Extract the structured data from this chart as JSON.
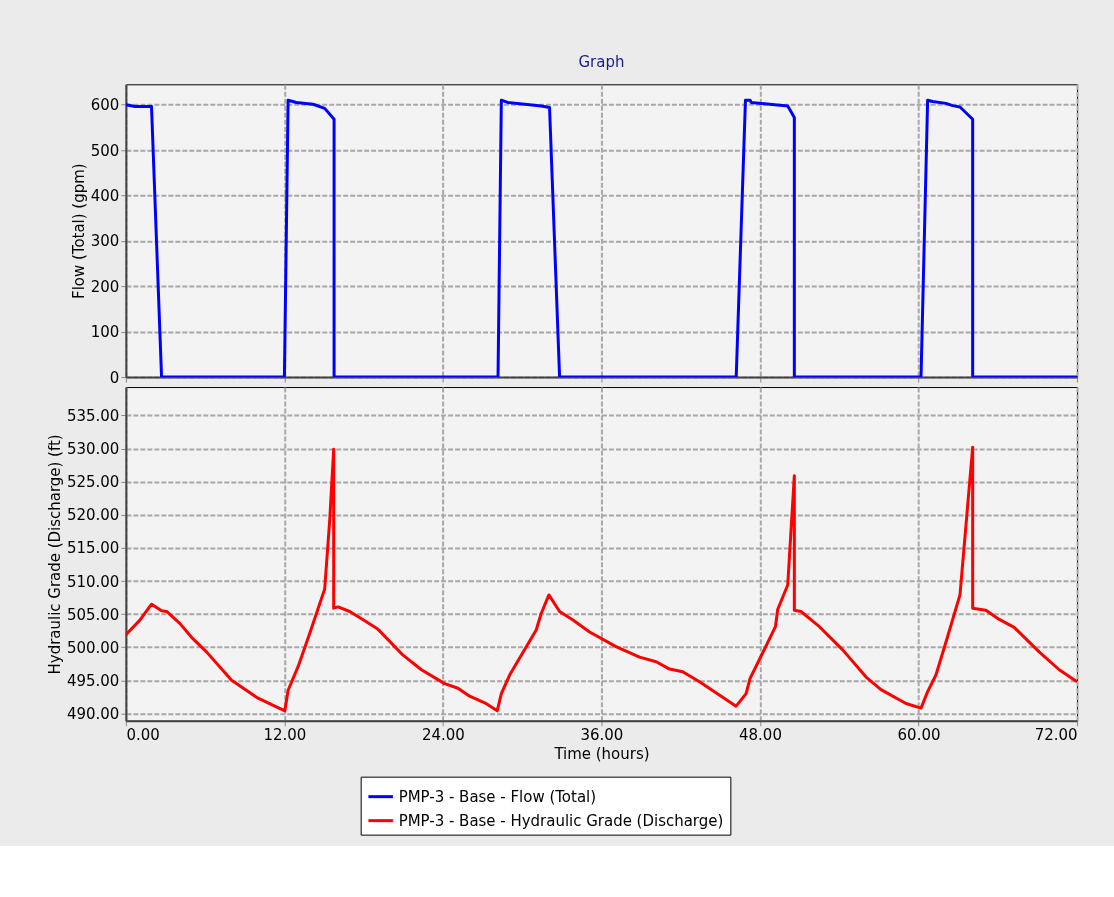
{
  "chart_data": [
    {
      "type": "line",
      "title": "Graph",
      "ylabel": "Flow (Total) (gpm)",
      "xlim": [
        0,
        72
      ],
      "xticks": [
        0,
        12,
        24,
        36,
        48,
        60,
        72
      ],
      "ylim": [
        0,
        645
      ],
      "yticks": [
        0,
        100,
        200,
        300,
        400,
        500,
        600
      ],
      "grid": true,
      "tick_labels": "y",
      "legend": "bottom",
      "line_style": "solid",
      "marker": "none",
      "series": [
        {
          "name": "PMP-3 - Base - Flow (Total)",
          "color": "#0000ff",
          "x": [
            0,
            0.7,
            1.94,
            2.7,
            12.0,
            12.28,
            12.9,
            14.17,
            15.05,
            15.76,
            15.76,
            28.17,
            28.42,
            28.9,
            31.45,
            32.07,
            32.83,
            46.2,
            46.9,
            47.25,
            47.33,
            50.1,
            50.6,
            50.6,
            60.19,
            60.69,
            61.07,
            62.08,
            62.58,
            63.14,
            64.1,
            64.1,
            72
          ],
          "values": [
            600,
            596,
            596,
            0,
            0,
            610,
            605,
            601,
            592,
            568,
            0,
            0,
            610,
            605,
            597,
            594,
            0,
            0,
            610,
            610,
            605,
            597,
            572,
            0,
            0,
            610,
            607,
            603,
            598,
            595,
            568,
            0,
            0
          ]
        }
      ]
    },
    {
      "type": "line",
      "xlabel": "Time (hours)",
      "ylabel": "Hydraulic Grade (Discharge) (ft)",
      "xlim": [
        0,
        72
      ],
      "xticks": [
        {
          "value": 0,
          "label": "0.00"
        },
        {
          "value": 12,
          "label": "12.00"
        },
        {
          "value": 24,
          "label": "24.00"
        },
        {
          "value": 36,
          "label": "36.00"
        },
        {
          "value": 48,
          "label": "48.00"
        },
        {
          "value": 60,
          "label": "60.00"
        },
        {
          "value": 72,
          "label": "72.00"
        }
      ],
      "ylim": [
        488.9,
        539.3
      ],
      "yticks": [
        {
          "value": 490,
          "label": "490.00"
        },
        {
          "value": 495,
          "label": "495.00"
        },
        {
          "value": 500,
          "label": "500.00"
        },
        {
          "value": 505,
          "label": "505.00"
        },
        {
          "value": 510,
          "label": "510.00"
        },
        {
          "value": 515,
          "label": "515.00"
        },
        {
          "value": 520,
          "label": "520.00"
        },
        {
          "value": 525,
          "label": "525.00"
        },
        {
          "value": 530,
          "label": "530.00"
        },
        {
          "value": 535,
          "label": "535.00"
        }
      ],
      "grid": true,
      "legend": "bottom",
      "line_style": "solid",
      "marker": "none",
      "series": [
        {
          "name": "PMP-3 - Base - Hydraulic Grade (Discharge)",
          "color": "#ff0000",
          "x": [
            0,
            1.06,
            1.94,
            2.7,
            3.08,
            4.08,
            4.97,
            6.1,
            8.0,
            10.0,
            12.03,
            12.28,
            13.04,
            13.92,
            15.05,
            15.43,
            15.73,
            15.73,
            16.06,
            16.94,
            18.08,
            19.09,
            20.98,
            22.37,
            24.13,
            25.14,
            26.02,
            27.16,
            28.11,
            28.42,
            29.05,
            31.06,
            31.44,
            32.02,
            32.83,
            33.84,
            35.1,
            37.1,
            38.88,
            40.14,
            41.15,
            42.15,
            43.42,
            46.19,
            46.95,
            47.25,
            48.07,
            49.17,
            49.34,
            50.1,
            50.6,
            50.6,
            51.1,
            52.5,
            54.26,
            56.03,
            57.16,
            59.05,
            60.19,
            60.69,
            61.32,
            62.08,
            63.14,
            64.1,
            64.1,
            65.1,
            66.11,
            67.24,
            69.13,
            70.65,
            72.0
          ],
          "values": [
            501.9,
            504.1,
            506.5,
            505.5,
            505.4,
            503.6,
            501.5,
            499.3,
            495.0,
            492.3,
            490.4,
            493.5,
            497.1,
            502.1,
            508.8,
            519.2,
            529.9,
            505.9,
            506.1,
            505.4,
            504.0,
            502.7,
            498.8,
            496.6,
            494.5,
            493.8,
            492.6,
            491.6,
            490.4,
            493.0,
            495.8,
            502.6,
            505.1,
            507.9,
            505.4,
            504.1,
            502.3,
            500.1,
            498.5,
            497.8,
            496.7,
            496.3,
            494.8,
            491.1,
            493.0,
            495.3,
            498.6,
            503.1,
            505.7,
            509.4,
            525.9,
            505.6,
            505.4,
            503.1,
            499.6,
            495.5,
            493.6,
            491.5,
            490.8,
            493.3,
            495.8,
            500.8,
            507.9,
            530.2,
            505.9,
            505.6,
            504.2,
            503.0,
            499.3,
            496.6,
            494.8
          ]
        }
      ]
    }
  ]
}
